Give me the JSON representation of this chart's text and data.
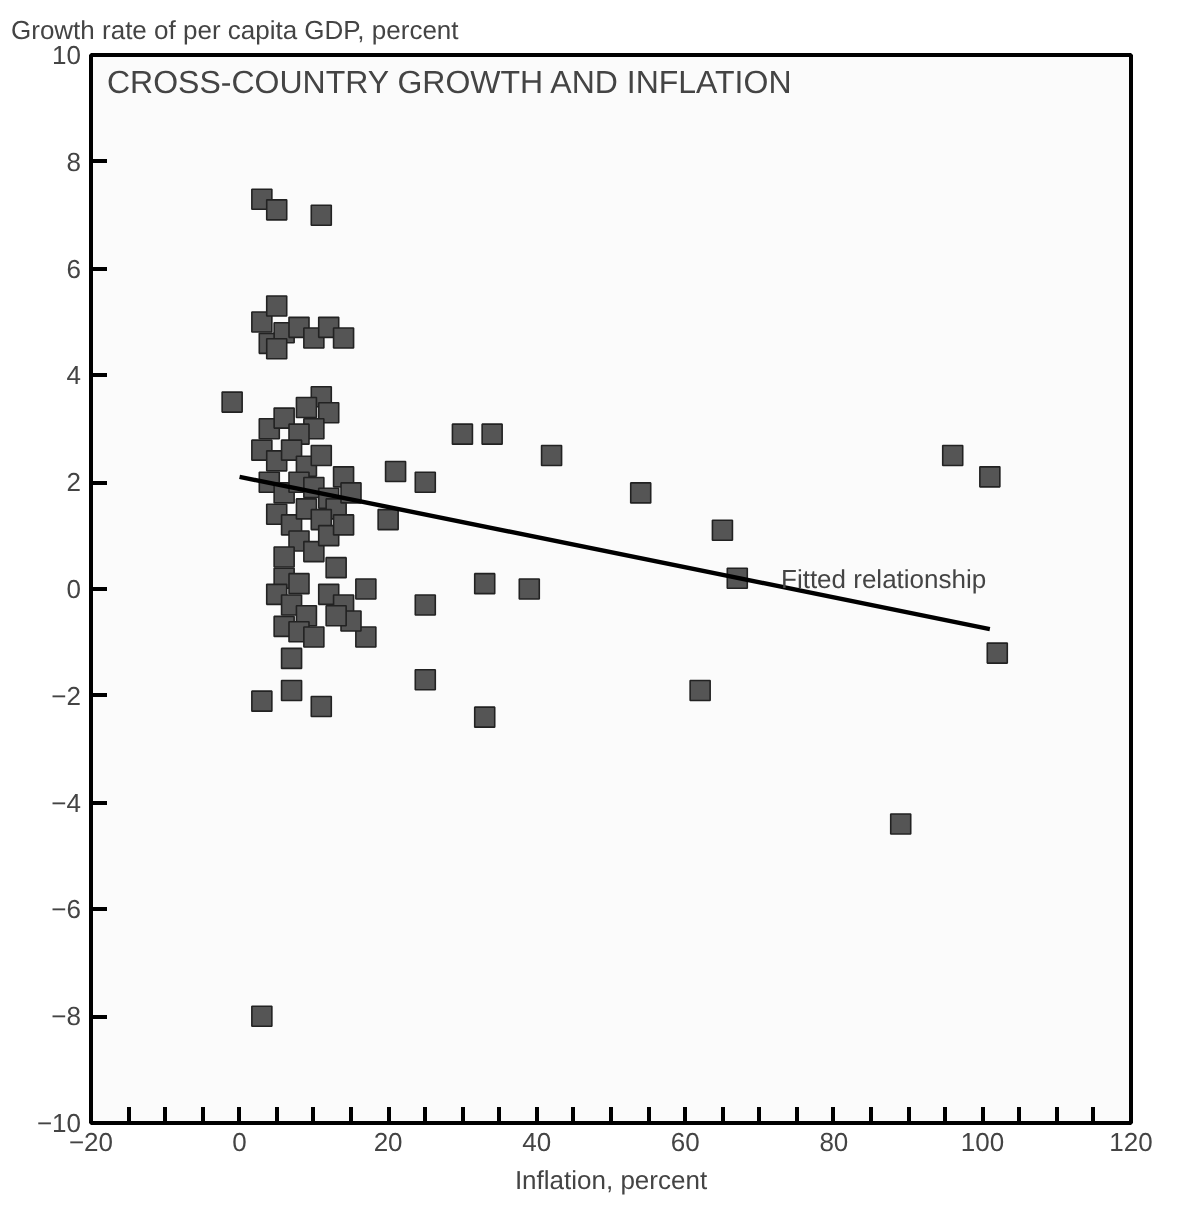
{
  "chart_data": {
    "type": "scatter",
    "title": "CROSS-COUNTRY GROWTH AND INFLATION",
    "xlabel": "Inflation, percent",
    "ylabel": "Growth rate of per capita GDP, percent",
    "xlim": [
      -20,
      120
    ],
    "ylim": [
      -10,
      10
    ],
    "xticks": [
      -20,
      {
        "value": -15,
        "label": null
      },
      {
        "value": -10,
        "label": null
      },
      {
        "value": -5,
        "label": null
      },
      0,
      {
        "value": 5,
        "label": null
      },
      {
        "value": 10,
        "label": null
      },
      {
        "value": 15,
        "label": null
      },
      20,
      {
        "value": 25,
        "label": null
      },
      {
        "value": 30,
        "label": null
      },
      {
        "value": 35,
        "label": null
      },
      40,
      {
        "value": 45,
        "label": null
      },
      {
        "value": 50,
        "label": null
      },
      {
        "value": 55,
        "label": null
      },
      60,
      {
        "value": 65,
        "label": null
      },
      {
        "value": 70,
        "label": null
      },
      {
        "value": 75,
        "label": null
      },
      80,
      {
        "value": 85,
        "label": null
      },
      {
        "value": 90,
        "label": null
      },
      {
        "value": 95,
        "label": null
      },
      100,
      {
        "value": 105,
        "label": null
      },
      {
        "value": 110,
        "label": null
      },
      {
        "value": 115,
        "label": null
      },
      120
    ],
    "yticks": [
      -10,
      -8,
      -6,
      -4,
      -2,
      0,
      2,
      4,
      6,
      8,
      10
    ],
    "grid": false,
    "series": [
      {
        "marker": "square",
        "color": "#555555",
        "x": [
          3,
          5,
          11,
          3,
          5,
          4,
          6,
          8,
          10,
          12,
          14,
          5,
          -1,
          11,
          9,
          12,
          10,
          4,
          6,
          8,
          3,
          5,
          7,
          9,
          11,
          4,
          6,
          8,
          10,
          12,
          14,
          13,
          15,
          5,
          7,
          9,
          11,
          8,
          10,
          6,
          12,
          14,
          21,
          20,
          25,
          30,
          34,
          42,
          54,
          65,
          67,
          96,
          101,
          102,
          17,
          25,
          33,
          39,
          17,
          25,
          33,
          62,
          89,
          3,
          6,
          8,
          5,
          7,
          9,
          6,
          8,
          10,
          7,
          13,
          12,
          14,
          15,
          3,
          7,
          11,
          13
        ],
        "values": [
          7.3,
          7.1,
          7.0,
          5.0,
          5.3,
          4.6,
          4.8,
          4.9,
          4.7,
          4.9,
          4.7,
          4.5,
          3.5,
          3.6,
          3.4,
          3.3,
          3.0,
          3.0,
          3.2,
          2.9,
          2.6,
          2.4,
          2.6,
          2.3,
          2.5,
          2.0,
          1.8,
          2.0,
          1.9,
          1.7,
          2.1,
          1.5,
          1.8,
          1.4,
          1.2,
          1.5,
          1.3,
          0.9,
          0.7,
          0.6,
          1.0,
          1.2,
          2.2,
          1.3,
          2.0,
          2.9,
          2.9,
          2.5,
          1.8,
          1.1,
          0.2,
          2.5,
          2.1,
          -1.2,
          0.0,
          -0.3,
          0.1,
          0.0,
          -0.9,
          -1.7,
          -2.4,
          -1.9,
          -4.4,
          -8.0,
          0.2,
          0.1,
          -0.1,
          -0.3,
          -0.5,
          -0.7,
          -0.8,
          -0.9,
          -1.3,
          0.4,
          -0.1,
          -0.3,
          -0.6,
          -2.1,
          -1.9,
          -2.2,
          -0.5
        ]
      },
      {
        "type": "line",
        "color": "#000000",
        "x": [
          0,
          101
        ],
        "values": [
          2.1,
          -0.75
        ],
        "line_style": "solid"
      }
    ],
    "annotations": [
      "Fitted relationship"
    ]
  }
}
